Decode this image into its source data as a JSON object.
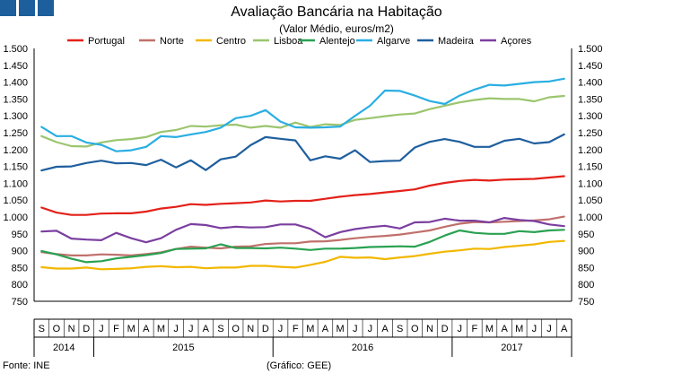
{
  "header": {
    "title": "Avaliação Bancária na Habitação",
    "subtitle": "(Valor Médio, euros/m2)"
  },
  "footer": {
    "source": "Fonte: INE",
    "credit": "(Gráfico: GEE)"
  },
  "chart_data": {
    "type": "line",
    "title": "Avaliação Bancária na Habitação",
    "subtitle": "(Valor Médio, euros/m2)",
    "ylim": [
      750,
      1500
    ],
    "yticks": [
      "750",
      "800",
      "850",
      "900",
      "950",
      "1.000",
      "1.050",
      "1.100",
      "1.150",
      "1.200",
      "1.250",
      "1.300",
      "1.350",
      "1.400",
      "1.450",
      "1.500"
    ],
    "ytick_values": [
      750,
      800,
      850,
      900,
      950,
      1000,
      1050,
      1100,
      1150,
      1200,
      1250,
      1300,
      1350,
      1400,
      1450,
      1500
    ],
    "categories": [
      "S",
      "O",
      "N",
      "D",
      "J",
      "F",
      "M",
      "A",
      "M",
      "J",
      "J",
      "A",
      "S",
      "O",
      "N",
      "D",
      "J",
      "F",
      "M",
      "A",
      "M",
      "J",
      "J",
      "A",
      "S",
      "O",
      "N",
      "D",
      "J",
      "F",
      "M",
      "A",
      "M",
      "J",
      "J",
      "A"
    ],
    "years": [
      {
        "label": "2014",
        "start": 0,
        "end": 3
      },
      {
        "label": "2015",
        "start": 4,
        "end": 15
      },
      {
        "label": "2016",
        "start": 16,
        "end": 27
      },
      {
        "label": "2017",
        "start": 28,
        "end": 35
      }
    ],
    "legend_position": "top",
    "series": [
      {
        "name": "Portugal",
        "color": "#e32119",
        "values": [
          1028,
          1013,
          1006,
          1006,
          1010,
          1011,
          1011,
          1016,
          1025,
          1030,
          1038,
          1036,
          1039,
          1041,
          1043,
          1049,
          1046,
          1048,
          1048,
          1054,
          1060,
          1065,
          1068,
          1073,
          1077,
          1082,
          1093,
          1101,
          1107,
          1110,
          1108,
          1111,
          1112,
          1113,
          1117,
          1121
        ]
      },
      {
        "name": "Norte",
        "color": "#c0706b",
        "values": [
          896,
          890,
          886,
          886,
          889,
          888,
          886,
          890,
          895,
          905,
          912,
          909,
          907,
          912,
          913,
          920,
          922,
          922,
          927,
          928,
          932,
          937,
          941,
          944,
          948,
          954,
          960,
          971,
          980,
          985,
          984,
          986,
          988,
          990,
          993,
          1001
        ]
      },
      {
        "name": "Centro",
        "color": "#f2b700",
        "values": [
          851,
          847,
          847,
          850,
          845,
          846,
          848,
          852,
          854,
          851,
          852,
          848,
          850,
          850,
          855,
          855,
          852,
          850,
          858,
          867,
          882,
          879,
          880,
          875,
          880,
          884,
          891,
          897,
          901,
          906,
          905,
          911,
          915,
          919,
          926,
          929
        ]
      },
      {
        "name": "Lisboa",
        "color": "#9bc56e",
        "values": [
          1240,
          1222,
          1210,
          1209,
          1221,
          1228,
          1231,
          1237,
          1252,
          1258,
          1270,
          1268,
          1272,
          1274,
          1265,
          1270,
          1265,
          1280,
          1267,
          1275,
          1273,
          1288,
          1293,
          1299,
          1304,
          1307,
          1320,
          1330,
          1340,
          1347,
          1352,
          1350,
          1350,
          1343,
          1355,
          1359
        ]
      },
      {
        "name": "Alentejo",
        "color": "#2aa152",
        "values": [
          899,
          889,
          876,
          866,
          869,
          877,
          882,
          887,
          893,
          905,
          906,
          907,
          919,
          908,
          908,
          907,
          909,
          906,
          902,
          906,
          906,
          908,
          911,
          912,
          913,
          912,
          926,
          945,
          960,
          953,
          950,
          950,
          958,
          955,
          960,
          962
        ]
      },
      {
        "name": "Algarve",
        "color": "#2aaee2",
        "values": [
          1267,
          1240,
          1240,
          1221,
          1214,
          1195,
          1198,
          1208,
          1240,
          1237,
          1245,
          1252,
          1265,
          1293,
          1300,
          1317,
          1283,
          1266,
          1265,
          1266,
          1268,
          1300,
          1330,
          1375,
          1374,
          1360,
          1344,
          1335,
          1360,
          1378,
          1392,
          1390,
          1395,
          1400,
          1402,
          1410
        ]
      },
      {
        "name": "Madeira",
        "color": "#1f5f9e",
        "values": [
          1138,
          1149,
          1150,
          1160,
          1167,
          1159,
          1160,
          1154,
          1170,
          1147,
          1168,
          1139,
          1171,
          1179,
          1213,
          1237,
          1232,
          1227,
          1168,
          1180,
          1173,
          1198,
          1163,
          1166,
          1167,
          1206,
          1223,
          1231,
          1223,
          1208,
          1208,
          1226,
          1232,
          1218,
          1222,
          1245
        ]
      },
      {
        "name": "Açores",
        "color": "#7b3fa0",
        "values": [
          957,
          959,
          936,
          933,
          931,
          953,
          937,
          925,
          937,
          962,
          979,
          976,
          967,
          971,
          969,
          970,
          978,
          978,
          965,
          940,
          955,
          964,
          970,
          974,
          966,
          984,
          985,
          995,
          989,
          989,
          984,
          997,
          991,
          988,
          978,
          973
        ]
      }
    ]
  }
}
